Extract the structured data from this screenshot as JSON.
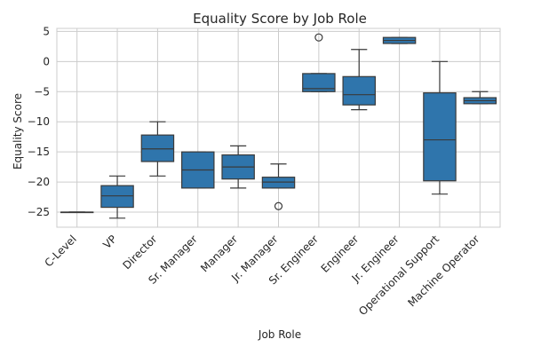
{
  "chart_data": {
    "type": "box",
    "title": "Equality Score by Job Role",
    "xlabel": "Job Role",
    "ylabel": "Equality Score",
    "ylim": [
      -27.5,
      5.5
    ],
    "yticks": [
      5,
      0,
      -5,
      -10,
      -15,
      -20,
      -25
    ],
    "ytick_labels": [
      "5",
      "0",
      "−5",
      "−10",
      "−15",
      "−20",
      "−25"
    ],
    "grid": true,
    "box_color": "#2f75ac",
    "categories": [
      "C-Level",
      "VP",
      "Director",
      "Sr. Manager",
      "Manager",
      "Jr. Manager",
      "Sr. Engineer",
      "Engineer",
      "Jr. Engineer",
      "Operational Support",
      "Machine Operator"
    ],
    "boxes": [
      {
        "whisker_low": -25,
        "q1": -25,
        "median": -25,
        "q3": -25,
        "whisker_high": -25,
        "outliers": []
      },
      {
        "whisker_low": -26,
        "q1": -24.2,
        "median": -22.3,
        "q3": -20.6,
        "whisker_high": -19,
        "outliers": []
      },
      {
        "whisker_low": -19,
        "q1": -16.6,
        "median": -14.5,
        "q3": -12.2,
        "whisker_high": -10,
        "outliers": []
      },
      {
        "whisker_low": -21,
        "q1": -21,
        "median": -18,
        "q3": -15,
        "whisker_high": -15,
        "outliers": []
      },
      {
        "whisker_low": -21,
        "q1": -19.5,
        "median": -17.5,
        "q3": -15.5,
        "whisker_high": -14,
        "outliers": []
      },
      {
        "whisker_low": -21,
        "q1": -21,
        "median": -20,
        "q3": -19.2,
        "whisker_high": -17,
        "outliers": [
          -24
        ]
      },
      {
        "whisker_low": -5,
        "q1": -5,
        "median": -4.5,
        "q3": -2,
        "whisker_high": -2,
        "outliers": [
          4
        ]
      },
      {
        "whisker_low": -8,
        "q1": -7.2,
        "median": -5.5,
        "q3": -2.5,
        "whisker_high": 2,
        "outliers": []
      },
      {
        "whisker_low": 3,
        "q1": 3,
        "median": 3.5,
        "q3": 4,
        "whisker_high": 4,
        "outliers": []
      },
      {
        "whisker_low": -22,
        "q1": -19.8,
        "median": -13,
        "q3": -5.2,
        "whisker_high": 0,
        "outliers": []
      },
      {
        "whisker_low": -7,
        "q1": -7,
        "median": -6.5,
        "q3": -6,
        "whisker_high": -5,
        "outliers": []
      }
    ]
  }
}
